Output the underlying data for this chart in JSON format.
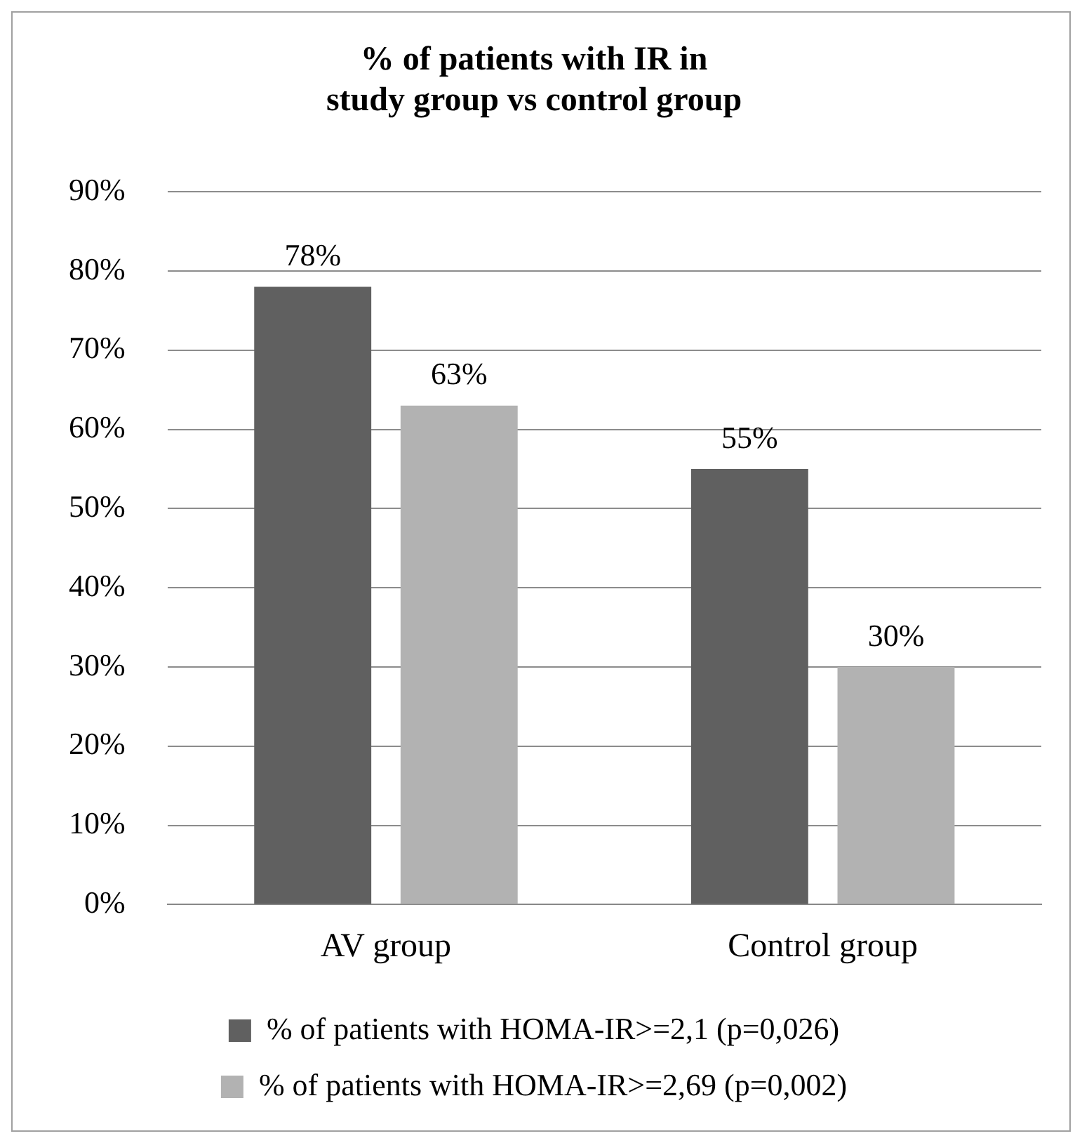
{
  "chart_data": {
    "type": "bar",
    "title": [
      "% of patients with IR in",
      "study group vs control group"
    ],
    "categories": [
      "AV group",
      "Control group"
    ],
    "series": [
      {
        "name": "% of patients with HOMA-IR>=2,1 (p=0,026)",
        "color": "#606060",
        "values": [
          78,
          55
        ],
        "value_labels": [
          "78%",
          "55%"
        ]
      },
      {
        "name": "% of patients with HOMA-IR>=2,69 (p=0,002)",
        "color": "#b2b2b2",
        "values": [
          63,
          30
        ],
        "value_labels": [
          "63%",
          "30%"
        ]
      }
    ],
    "ylim": [
      0,
      90
    ],
    "yticks": [
      {
        "value": 0,
        "label": "0%"
      },
      {
        "value": 10,
        "label": "10%"
      },
      {
        "value": 20,
        "label": "20%"
      },
      {
        "value": 30,
        "label": "30%"
      },
      {
        "value": 40,
        "label": "40%"
      },
      {
        "value": 50,
        "label": "50%"
      },
      {
        "value": 60,
        "label": "60%"
      },
      {
        "value": 70,
        "label": "70%"
      },
      {
        "value": 80,
        "label": "80%"
      },
      {
        "value": 90,
        "label": "90%"
      }
    ],
    "grid": "y",
    "legend": "bottom"
  }
}
